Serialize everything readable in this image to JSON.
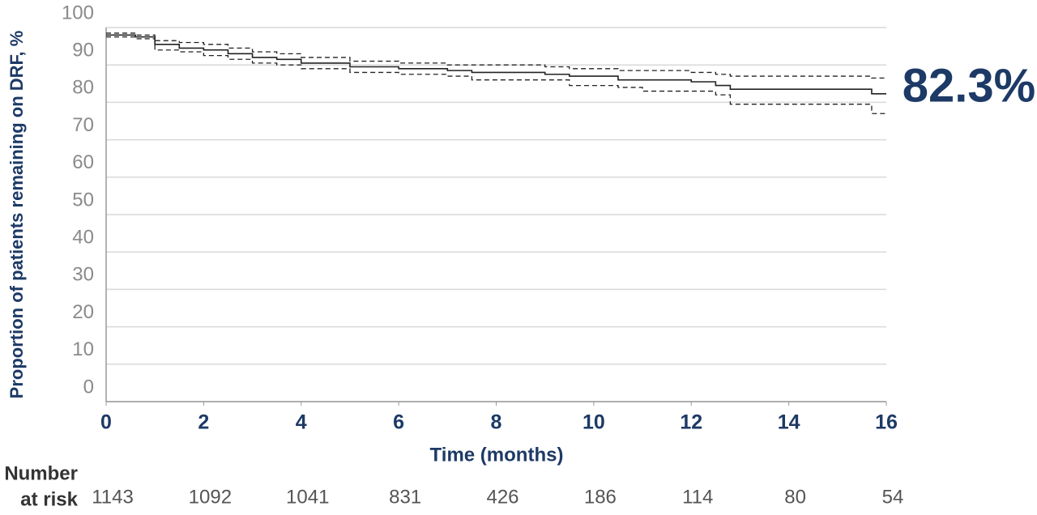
{
  "chart_data": {
    "type": "step",
    "y_axis_title": "Proportion of patients remaining on DRF, %",
    "x_axis_title": "Time (months)",
    "annotation": "82.3%",
    "xlim": [
      0,
      16
    ],
    "xticks": [
      0,
      2,
      4,
      6,
      8,
      10,
      12,
      14,
      16
    ],
    "ylim": [
      0,
      100
    ],
    "yticks": [
      0,
      10,
      20,
      30,
      40,
      50,
      60,
      70,
      80,
      90,
      100
    ],
    "grid": true,
    "x": [
      0,
      0.3,
      0.6,
      1,
      1.5,
      2,
      2.5,
      3,
      3.5,
      4,
      5,
      6,
      7,
      7.5,
      9,
      9.5,
      10.5,
      11,
      12,
      12.5,
      12.8,
      15.7,
      16
    ],
    "series": [
      {
        "color": "#222222",
        "line_style": "solid",
        "values": [
          98,
          98,
          97.5,
          95.5,
          94.5,
          94,
          93,
          92,
          91.5,
          90.5,
          89.5,
          89,
          88.5,
          88,
          87.5,
          87,
          86,
          86,
          85.5,
          84.5,
          83.5,
          82.3,
          82.3
        ]
      },
      {
        "color": "#222222",
        "line_style": "dashed",
        "values": [
          98.5,
          98.5,
          98,
          96.5,
          96,
          95.5,
          94.5,
          93.5,
          93,
          92,
          91,
          90.5,
          90,
          90,
          89.5,
          89,
          88.5,
          88.5,
          88,
          87.5,
          87,
          86.5,
          86.5
        ]
      },
      {
        "color": "#222222",
        "line_style": "dashed",
        "values": [
          97.5,
          97.5,
          97,
          94,
          93.5,
          92.5,
          91.5,
          90.5,
          90,
          89,
          88,
          87.5,
          87,
          86,
          86,
          84.5,
          84,
          83,
          83,
          82,
          79.5,
          77,
          77
        ]
      }
    ],
    "number_at_risk": {
      "label": [
        "Number",
        "at risk"
      ],
      "values": [
        1143,
        1092,
        1041,
        831,
        426,
        186,
        114,
        80,
        54
      ]
    }
  }
}
